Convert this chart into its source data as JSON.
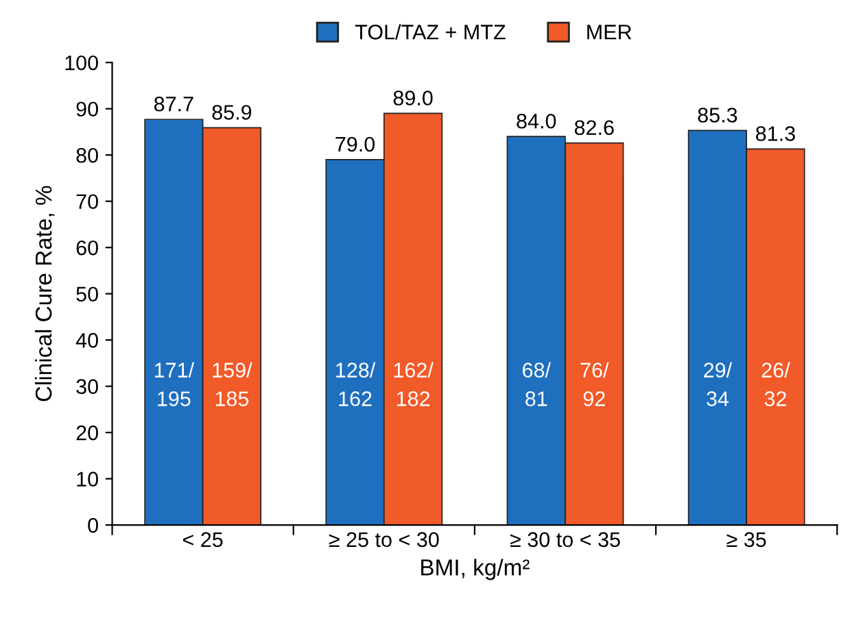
{
  "chart_data": {
    "type": "bar",
    "xlabel": "BMI, kg/m²",
    "ylabel": "Clinical Cure Rate, %",
    "categories": [
      "< 25",
      "≥ 25 to < 30",
      "≥ 30 to < 35",
      "≥ 35"
    ],
    "series": [
      {
        "name": "TOL/TAZ + MTZ",
        "color": "#1f6fbf",
        "values": [
          87.7,
          79.0,
          84.0,
          85.3
        ],
        "value_labels": [
          "87.7",
          "79.0",
          "84.0",
          "85.3"
        ]
      },
      {
        "name": "MER",
        "color": "#f15a29",
        "values": [
          85.9,
          89.0,
          82.6,
          81.3
        ],
        "value_labels": [
          "85.9",
          "89.0",
          "82.6",
          "81.3"
        ]
      }
    ],
    "annotations": [
      "171/\n195",
      "128/\n162",
      "68/\n81",
      "29/\n34",
      "159/\n185",
      "162/\n182",
      "76/\n92",
      "26/\n32"
    ],
    "ylim": [
      0,
      100
    ],
    "yticks": [
      0,
      10,
      20,
      30,
      40,
      50,
      60,
      70,
      80,
      90,
      100
    ],
    "legend": "top",
    "grid": false
  }
}
